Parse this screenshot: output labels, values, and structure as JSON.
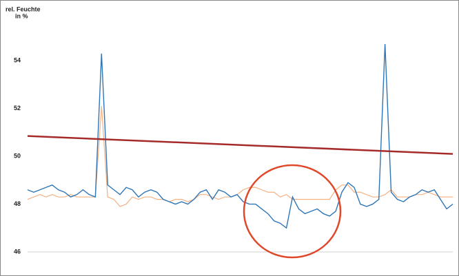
{
  "chart_data": {
    "type": "line",
    "ylabel": [
      "rel. Feuchte",
      "in %"
    ],
    "x": [
      0,
      1,
      2,
      3,
      4,
      5,
      6,
      7,
      8,
      9,
      10,
      11,
      12,
      13,
      14,
      15,
      16,
      17,
      18,
      19,
      20,
      21,
      22,
      23,
      24,
      25,
      26,
      27,
      28,
      29,
      30,
      31,
      32,
      33,
      34,
      35,
      36,
      37,
      38,
      39,
      40,
      41,
      42,
      43,
      44,
      45,
      46,
      47,
      48,
      49,
      50,
      51,
      52,
      53,
      54,
      55,
      56,
      57,
      58,
      59,
      60,
      61,
      62,
      63,
      64,
      65,
      66,
      67,
      68,
      69
    ],
    "xlim": [
      0,
      69
    ],
    "ylim": [
      46,
      56.4
    ],
    "yticks": [
      46,
      48,
      50,
      52,
      54
    ],
    "grid": false,
    "series": [
      {
        "color": "#f4b183",
        "values": [
          48.2,
          48.3,
          48.4,
          48.3,
          48.4,
          48.3,
          48.3,
          48.4,
          48.3,
          48.3,
          48.3,
          48.3,
          52.1,
          48.3,
          48.2,
          47.9,
          48.0,
          48.3,
          48.2,
          48.3,
          48.3,
          48.2,
          48.2,
          48.1,
          48.2,
          48.2,
          48.1,
          48.2,
          48.4,
          48.4,
          48.3,
          48.2,
          48.3,
          48.3,
          48.4,
          48.6,
          48.7,
          48.7,
          48.6,
          48.5,
          48.5,
          48.3,
          48.4,
          48.2,
          48.2,
          48.2,
          48.2,
          48.2,
          48.2,
          48.2,
          48.6,
          48.8,
          48.8,
          48.5,
          48.5,
          48.4,
          48.3,
          48.3,
          48.4,
          48.6,
          48.3,
          48.3,
          48.3,
          48.4,
          48.4,
          48.5,
          48.4,
          48.3,
          48.3,
          48.3
        ]
      },
      {
        "color": "#2e75b6",
        "values": [
          48.6,
          48.5,
          48.6,
          48.7,
          48.8,
          48.6,
          48.5,
          48.3,
          48.4,
          48.6,
          48.4,
          48.3,
          54.3,
          48.8,
          48.6,
          48.4,
          48.7,
          48.6,
          48.3,
          48.5,
          48.6,
          48.5,
          48.2,
          48.1,
          48.0,
          48.1,
          48.0,
          48.2,
          48.5,
          48.6,
          48.2,
          48.6,
          48.5,
          48.3,
          48.4,
          48.1,
          48.0,
          48.0,
          47.8,
          47.6,
          47.3,
          47.2,
          47.0,
          48.3,
          47.8,
          47.6,
          47.7,
          47.8,
          47.6,
          47.5,
          47.7,
          48.5,
          48.9,
          48.7,
          48.0,
          47.9,
          48.0,
          48.2,
          54.7,
          48.5,
          48.2,
          48.1,
          48.3,
          48.4,
          48.6,
          48.5,
          48.6,
          48.2,
          47.8,
          48.0
        ]
      },
      {
        "color": "#a52a2a",
        "x": [
          0,
          69
        ],
        "values": [
          50.85,
          50.1
        ]
      }
    ]
  }
}
